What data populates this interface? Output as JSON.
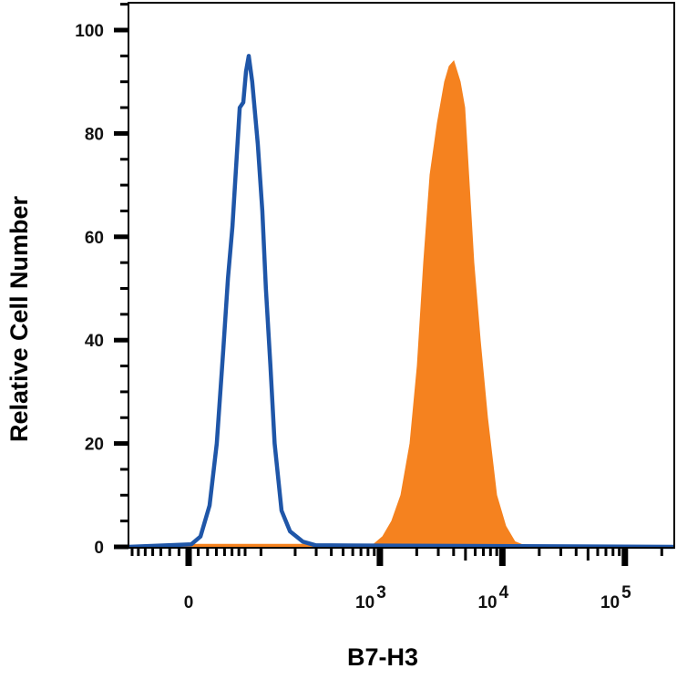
{
  "chart_data": {
    "type": "area",
    "title": "",
    "xlabel": "B7-H3",
    "ylabel": "Relative Cell Number",
    "x_scale": "biexponential",
    "xlim": [
      -76,
      252000
    ],
    "ylim": [
      0,
      105
    ],
    "grid": false,
    "x_ticks": [
      {
        "value": 0,
        "base": "0",
        "exp": ""
      },
      {
        "value": 1000,
        "base": "10",
        "exp": "3"
      },
      {
        "value": 10000,
        "base": "10",
        "exp": "4"
      },
      {
        "value": 100000,
        "base": "10",
        "exp": "5"
      }
    ],
    "y_ticks": [
      {
        "value": 0,
        "label": "0"
      },
      {
        "value": 20,
        "label": "20"
      },
      {
        "value": 40,
        "label": "40"
      },
      {
        "value": 60,
        "label": "60"
      },
      {
        "value": 80,
        "label": "80"
      },
      {
        "value": 100,
        "label": "100"
      }
    ],
    "series": [
      {
        "style": "filled",
        "color": "#F5821F",
        "x": [
          -76,
          10,
          888,
          1055,
          1251,
          1486,
          1763,
          2023,
          2280,
          2571,
          2948,
          3381,
          3683,
          4013,
          4525,
          4928,
          5369,
          5850,
          6594,
          7561,
          8975,
          10650,
          12640,
          15000,
          252000
        ],
        "y": [
          0,
          0.5,
          0.5,
          2,
          5,
          10,
          20,
          35,
          55,
          72,
          82,
          90,
          93,
          94,
          90,
          85,
          70,
          55,
          40,
          25,
          10,
          4,
          1,
          0.3,
          0
        ]
      },
      {
        "style": "line",
        "color": "#1F56A8",
        "x": [
          -76,
          2.8,
          12.3,
          22.2,
          30.5,
          38.4,
          44.5,
          50.6,
          61.3,
          67.0,
          71.5,
          76.2,
          82.6,
          93.4,
          103,
          111,
          122,
          133,
          153,
          181,
          232,
          297,
          252000
        ],
        "y": [
          0,
          0.5,
          2,
          8,
          20,
          38,
          52,
          62,
          85,
          86,
          92,
          95,
          90,
          78,
          65,
          50,
          35,
          20,
          7,
          3,
          1,
          0.3,
          0
        ]
      }
    ]
  }
}
